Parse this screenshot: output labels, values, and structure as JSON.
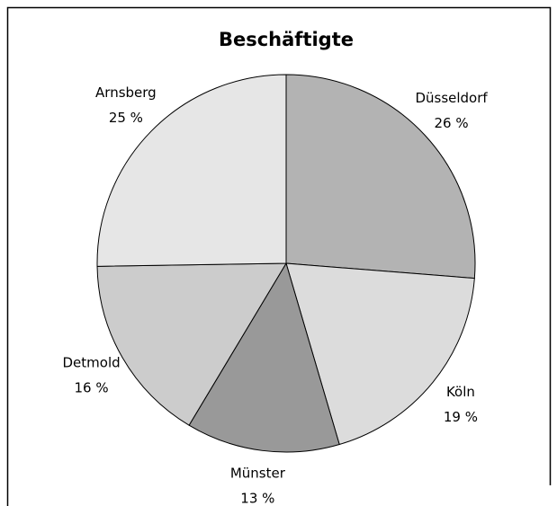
{
  "chart_data": {
    "type": "pie",
    "title": "Beschäftigte",
    "categories": [
      "Düsseldorf",
      "Köln",
      "Münster",
      "Detmold",
      "Arnsberg"
    ],
    "values": [
      26,
      19,
      13,
      16,
      25
    ],
    "value_labels": [
      "26 %",
      "19 %",
      "13 %",
      "16 %",
      "25 %"
    ],
    "colors": [
      "#b3b3b3",
      "#dcdcdc",
      "#999999",
      "#cccccc",
      "#e6e6e6"
    ]
  }
}
